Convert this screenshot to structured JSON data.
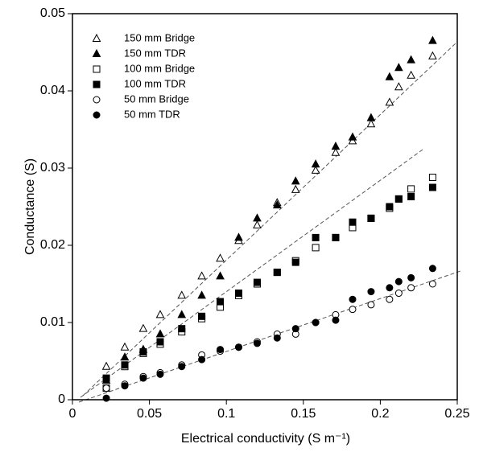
{
  "chart_data": {
    "type": "scatter",
    "xlabel": "Electrical conductivity (S m⁻¹)",
    "ylabel": "Conductance (S)",
    "xlim": [
      0,
      0.25
    ],
    "xticks": [
      0,
      0.05,
      0.1,
      0.15,
      0.2,
      0.25
    ],
    "ylim": [
      0,
      0.05
    ],
    "yticks": [
      0,
      0.01,
      0.02,
      0.03,
      0.04,
      0.05
    ],
    "legend": "upper left",
    "x": [
      0.022,
      0.034,
      0.046,
      0.057,
      0.071,
      0.084,
      0.096,
      0.108,
      0.12,
      0.133,
      0.145,
      0.158,
      0.171,
      0.182,
      0.194,
      0.206,
      0.212,
      0.22,
      0.234
    ],
    "series": [
      {
        "name": "150 mm Bridge",
        "color": "#000000",
        "marker": "triangle",
        "filled": false,
        "values": [
          0.0043,
          0.0068,
          0.0092,
          0.011,
          0.0135,
          0.016,
          0.0183,
          0.0206,
          0.0226,
          0.0255,
          0.0272,
          0.0297,
          0.032,
          0.0335,
          0.0357,
          0.0385,
          0.0405,
          0.042,
          0.0445
        ]
      },
      {
        "name": "150 mm TDR",
        "color": "#000000",
        "marker": "triangle",
        "filled": true,
        "values": [
          0.0025,
          0.0055,
          0.0065,
          0.0085,
          0.011,
          0.0135,
          0.016,
          0.021,
          0.0235,
          0.0252,
          0.0283,
          0.0305,
          0.0328,
          0.034,
          0.0365,
          0.0418,
          0.043,
          0.044,
          0.0465
        ]
      },
      {
        "name": "100 mm Bridge",
        "color": "#000000",
        "marker": "square",
        "filled": false,
        "values": [
          0.0015,
          0.0043,
          0.006,
          0.0072,
          0.0088,
          0.0105,
          0.012,
          0.0135,
          0.015,
          0.0165,
          0.018,
          0.0197,
          0.021,
          0.0223,
          0.0235,
          0.0248,
          0.026,
          0.0273,
          0.0288
        ]
      },
      {
        "name": "100 mm TDR",
        "color": "#000000",
        "marker": "square",
        "filled": true,
        "values": [
          0.0028,
          0.0045,
          0.0062,
          0.0075,
          0.0092,
          0.0108,
          0.0127,
          0.0138,
          0.0152,
          0.0165,
          0.0178,
          0.021,
          0.021,
          0.023,
          0.0235,
          0.025,
          0.026,
          0.0263,
          0.0275
        ]
      },
      {
        "name": "50 mm Bridge",
        "color": "#000000",
        "marker": "circle",
        "filled": false,
        "values": [
          0.0015,
          0.002,
          0.003,
          0.0035,
          0.0045,
          0.0058,
          0.0063,
          0.0068,
          0.0075,
          0.0085,
          0.0085,
          0.01,
          0.011,
          0.0117,
          0.0123,
          0.013,
          0.0138,
          0.0145,
          0.015
        ]
      },
      {
        "name": "50 mm TDR",
        "color": "#000000",
        "marker": "circle",
        "filled": true,
        "values": [
          0.0002,
          0.0018,
          0.0028,
          0.0033,
          0.0043,
          0.0052,
          0.0065,
          0.0068,
          0.0073,
          0.008,
          0.0092,
          0.01,
          0.0103,
          0.013,
          0.014,
          0.0145,
          0.0153,
          0.0158,
          0.017
        ]
      }
    ]
  }
}
